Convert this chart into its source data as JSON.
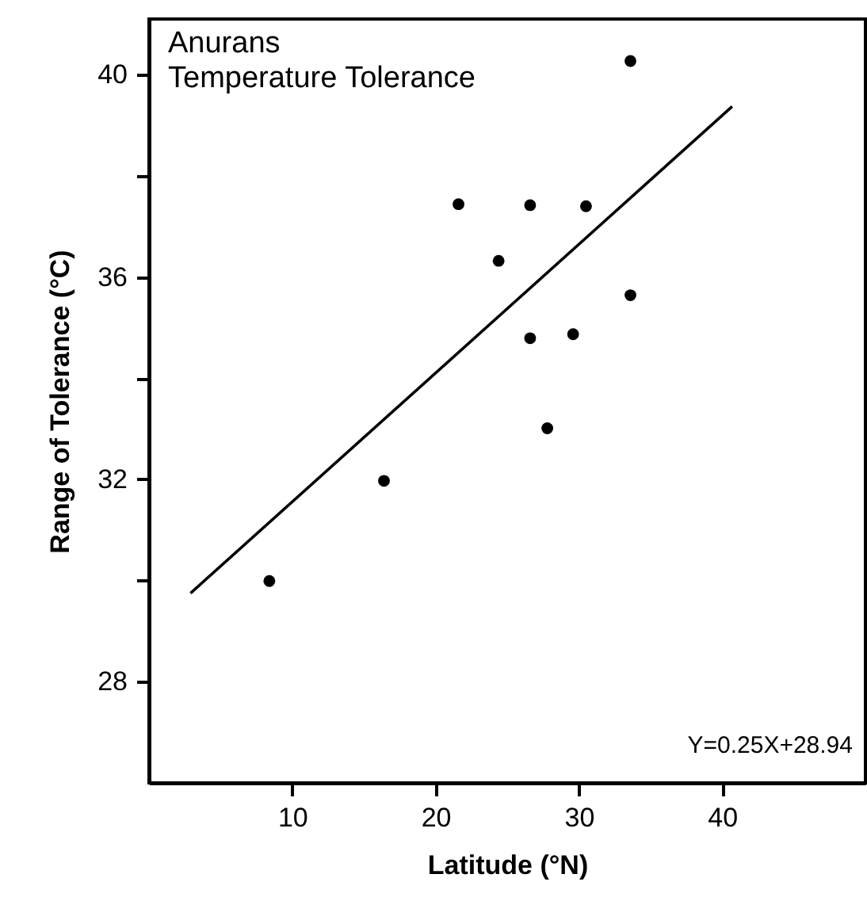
{
  "chart_data": {
    "type": "scatter",
    "title": "Anurans\nTemperature Tolerance",
    "xlabel": "Latitude (°N)",
    "ylabel": "Range of Tolerance (°C)",
    "annotations": [
      "Y=0.25X+28.94"
    ],
    "x": [
      33.6,
      21.6,
      26.6,
      30.5,
      24.4,
      33.6,
      26.6,
      29.6,
      27.8,
      16.4,
      8.4
    ],
    "series": [
      {
        "color": "#000000",
        "values": [
          40.27,
          37.44,
          37.42,
          37.4,
          36.32,
          35.64,
          34.79,
          34.87,
          33.01,
          31.97,
          29.99
        ]
      },
      {
        "type": "line",
        "marker": "none",
        "color": "#000000",
        "x": [
          2.9,
          40.7
        ],
        "values": [
          29.75,
          39.37
        ]
      }
    ],
    "marker": "circle",
    "grid": false,
    "xlim": [
      0,
      50
    ],
    "xticks": [
      10,
      20,
      30,
      40
    ],
    "ylim": [
      26,
      41.1
    ],
    "yticks": [
      28,
      {
        "value": 30,
        "label": null
      },
      32,
      {
        "value": 34,
        "label": null
      },
      36,
      {
        "value": 38,
        "label": null
      },
      40
    ]
  }
}
